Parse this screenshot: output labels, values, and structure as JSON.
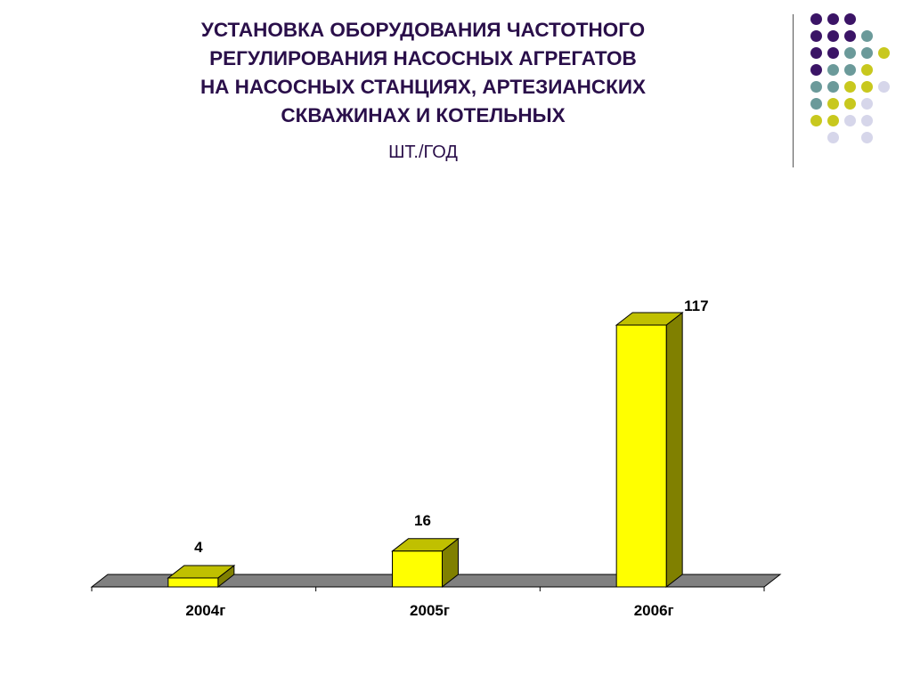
{
  "slide": {
    "title_lines": [
      "УСТАНОВКА ОБОРУДОВАНИЯ ЧАСТОТНОГО",
      "РЕГУЛИРОВАНИЯ НАСОСНЫХ АГРЕГАТОВ",
      "НА НАСОСНЫХ СТАНЦИЯХ,  АРТЕЗИАНСКИХ",
      "СКВАЖИНАХ И КОТЕЛЬНЫХ"
    ],
    "subtitle": "ШТ./ГОД"
  },
  "decoration": {
    "dot_colors": {
      "purple": "#3b1466",
      "teal": "#6b9a9a",
      "olive": "#c8c81e",
      "lavender": "#d6d6ea"
    },
    "dot_grid": [
      [
        "purple",
        "purple",
        "purple",
        null,
        null
      ],
      [
        "purple",
        "purple",
        "purple",
        "teal",
        null
      ],
      [
        "purple",
        "purple",
        "teal",
        "teal",
        "olive"
      ],
      [
        "purple",
        "teal",
        "teal",
        "olive",
        null
      ],
      [
        "teal",
        "teal",
        "olive",
        "olive",
        "lavender"
      ],
      [
        "teal",
        "olive",
        "olive",
        "lavender",
        null
      ],
      [
        "olive",
        "olive",
        "lavender",
        "lavender",
        null
      ],
      [
        null,
        "lavender",
        null,
        "lavender",
        null
      ]
    ]
  },
  "chart_data": {
    "type": "bar",
    "style": "3d",
    "categories": [
      "2004г",
      "2005г",
      "2006г"
    ],
    "values": [
      4,
      16,
      117
    ],
    "data_labels": [
      "4",
      "16",
      "117"
    ],
    "ylim": [
      0,
      117
    ],
    "grid": false,
    "legend": "none",
    "colors": {
      "bar_front": "#ffff00",
      "bar_top": "#c0c000",
      "bar_side": "#808000",
      "floor": "#808080"
    }
  }
}
